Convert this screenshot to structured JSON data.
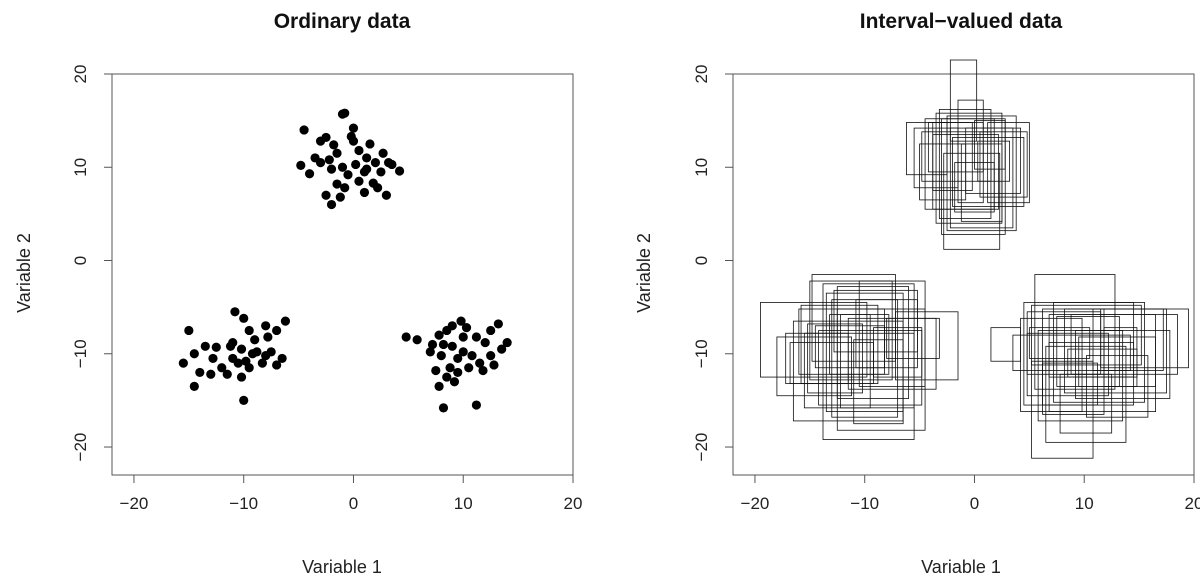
{
  "chart_data": [
    {
      "type": "scatter",
      "title": "Ordinary data",
      "xlabel": "Variable 1",
      "ylabel": "Variable 2",
      "xlim": [
        -22,
        20
      ],
      "ylim": [
        -23,
        20
      ],
      "xticks": [
        "−20",
        "−10",
        "0",
        "10",
        "20"
      ],
      "yticks": [
        "−20",
        "−10",
        "0",
        "10",
        "20"
      ],
      "grid": false,
      "legend": "none",
      "points": [
        [
          -4.5,
          14
        ],
        [
          -2.5,
          13.2
        ],
        [
          -1,
          15.7
        ],
        [
          -0.8,
          15.8
        ],
        [
          0,
          14.2
        ],
        [
          1.5,
          12.5
        ],
        [
          -3.5,
          11
        ],
        [
          -1.5,
          11.5
        ],
        [
          0.5,
          11.8
        ],
        [
          2.7,
          11.5
        ],
        [
          -4.8,
          10.2
        ],
        [
          -3,
          10.5
        ],
        [
          -2.2,
          10.8
        ],
        [
          -1,
          10
        ],
        [
          0.2,
          10.3
        ],
        [
          1.2,
          9.8
        ],
        [
          2,
          10.5
        ],
        [
          3.2,
          10.5
        ],
        [
          4.2,
          9.6
        ],
        [
          -4,
          9.3
        ],
        [
          -2,
          9.8
        ],
        [
          -0.5,
          9.2
        ],
        [
          1,
          9.5
        ],
        [
          2.5,
          9.5
        ],
        [
          3.5,
          10.3
        ],
        [
          -1.5,
          8.2
        ],
        [
          0.5,
          8.5
        ],
        [
          1.8,
          8.3
        ],
        [
          -2.5,
          7
        ],
        [
          -0.8,
          7.8
        ],
        [
          1,
          7.3
        ],
        [
          3,
          7
        ],
        [
          -1.2,
          6.8
        ],
        [
          -2,
          6
        ],
        [
          0,
          12.8
        ],
        [
          -1.8,
          12.4
        ],
        [
          -0.2,
          13.3
        ],
        [
          1.2,
          11
        ],
        [
          -3,
          12.8
        ],
        [
          2.2,
          7.8
        ],
        [
          -15,
          -7.5
        ],
        [
          -14.5,
          -10
        ],
        [
          -13.5,
          -9.2
        ],
        [
          -12.5,
          -9.3
        ],
        [
          -11,
          -8.8
        ],
        [
          -10.8,
          -5.5
        ],
        [
          -10,
          -6.2
        ],
        [
          -9.5,
          -7.5
        ],
        [
          -8,
          -7
        ],
        [
          -7,
          -7.5
        ],
        [
          -6.2,
          -6.5
        ],
        [
          -15.5,
          -11
        ],
        [
          -14,
          -12
        ],
        [
          -13,
          -12.2
        ],
        [
          -12,
          -11.5
        ],
        [
          -11,
          -10.5
        ],
        [
          -10.2,
          -9.5
        ],
        [
          -9.2,
          -10
        ],
        [
          -8.3,
          -11
        ],
        [
          -7.5,
          -9.8
        ],
        [
          -6.5,
          -10.5
        ],
        [
          -14.5,
          -13.5
        ],
        [
          -11.5,
          -12.2
        ],
        [
          -10.5,
          -11
        ],
        [
          -9.8,
          -10.8
        ],
        [
          -8.8,
          -9.8
        ],
        [
          -8,
          -10.2
        ],
        [
          -7,
          -11.2
        ],
        [
          -10.2,
          -12.5
        ],
        [
          -9.5,
          -11.5
        ],
        [
          -10,
          -15
        ],
        [
          -11.2,
          -9.2
        ],
        [
          -12.8,
          -10.5
        ],
        [
          -9,
          -8.5
        ],
        [
          -7.8,
          -8.2
        ],
        [
          4.8,
          -8.2
        ],
        [
          5.8,
          -8.5
        ],
        [
          7.2,
          -9
        ],
        [
          7.8,
          -8
        ],
        [
          8.5,
          -7.5
        ],
        [
          9,
          -9.2
        ],
        [
          9.8,
          -6.5
        ],
        [
          10.3,
          -7.2
        ],
        [
          11.2,
          -8.2
        ],
        [
          12.5,
          -7.5
        ],
        [
          13.2,
          -6.8
        ],
        [
          14,
          -8.8
        ],
        [
          8,
          -10.2
        ],
        [
          8.8,
          -11.5
        ],
        [
          9.5,
          -10.5
        ],
        [
          10,
          -9.8
        ],
        [
          10.8,
          -10.2
        ],
        [
          11.5,
          -11
        ],
        [
          12.5,
          -10.2
        ],
        [
          13.5,
          -9.5
        ],
        [
          7.5,
          -11.8
        ],
        [
          8.5,
          -12.5
        ],
        [
          9.5,
          -12
        ],
        [
          10.5,
          -11.5
        ],
        [
          11.8,
          -11.8
        ],
        [
          7.8,
          -13.5
        ],
        [
          8.2,
          -15.8
        ],
        [
          11.2,
          -15.5
        ],
        [
          9,
          -7
        ],
        [
          12,
          -8.8
        ],
        [
          10,
          -8.2
        ],
        [
          7,
          -9.8
        ],
        [
          12.8,
          -11.2
        ],
        [
          9.2,
          -13
        ],
        [
          8.2,
          -9
        ]
      ]
    },
    {
      "type": "scatter",
      "title": "Interval−valued data",
      "xlabel": "Variable 1",
      "ylabel": "Variable 2",
      "xlim": [
        -22,
        20
      ],
      "ylim": [
        -23,
        20
      ],
      "xticks": [
        "−20",
        "−10",
        "0",
        "10",
        "20"
      ],
      "yticks": [
        "−20",
        "−10",
        "0",
        "10",
        "20"
      ],
      "grid": false,
      "legend": "none",
      "rects": [
        [
          -2.2,
          0.2,
          12.8,
          21.5
        ],
        [
          -3.8,
          -0.2,
          7.5,
          14.8
        ],
        [
          -1.2,
          2.5,
          4.2,
          12.5
        ],
        [
          -4.5,
          1.8,
          5.5,
          15.2
        ],
        [
          0.5,
          4.8,
          6.8,
          13.8
        ],
        [
          -6.2,
          -2.5,
          9.2,
          14.8
        ],
        [
          -2.8,
          2.3,
          1.2,
          11.5
        ],
        [
          -3.2,
          1.5,
          4.5,
          16.2
        ],
        [
          -5,
          -0.8,
          6.5,
          12.5
        ],
        [
          -2.5,
          3.8,
          3.2,
          15.5
        ],
        [
          0.3,
          3.2,
          8.5,
          12.8
        ],
        [
          -4.2,
          0.8,
          9.5,
          14.8
        ],
        [
          -1.8,
          1.8,
          5.2,
          10.5
        ],
        [
          -3,
          2.8,
          2.8,
          15.2
        ],
        [
          -0.8,
          4.2,
          7.2,
          14.2
        ],
        [
          -3.8,
          2.2,
          5.5,
          13.5
        ],
        [
          1.2,
          5,
          6.2,
          14.8
        ],
        [
          -2.2,
          3.5,
          3.5,
          14.2
        ],
        [
          -1.5,
          0.8,
          6.2,
          17.2
        ],
        [
          -4.8,
          1.5,
          8.5,
          13.8
        ],
        [
          0,
          2.8,
          9.8,
          15
        ],
        [
          -3.5,
          2.5,
          4,
          15.8
        ],
        [
          -2,
          4.5,
          5.8,
          13.2
        ],
        [
          -5.5,
          -1.5,
          7.8,
          14.2
        ],
        [
          -19.5,
          -9.8,
          -12.5,
          -4.5
        ],
        [
          -16.5,
          -6.5,
          -17.2,
          -6.5
        ],
        [
          -15.5,
          -5.5,
          -15.8,
          -7.8
        ],
        [
          -13.8,
          -5.5,
          -19.2,
          -2.5
        ],
        [
          -18,
          -11.2,
          -14.5,
          -8.2
        ],
        [
          -16,
          -8.2,
          -12.2,
          -5.2
        ],
        [
          -14.8,
          -7.2,
          -10.8,
          -1.5
        ],
        [
          -12.5,
          -4.5,
          -18.2,
          -5.2
        ],
        [
          -15.2,
          -10.2,
          -14.2,
          -6.8
        ],
        [
          -13.5,
          -6.5,
          -16.2,
          -3.5
        ],
        [
          -11.5,
          -3.5,
          -13.8,
          -6.2
        ],
        [
          -16.8,
          -9.2,
          -13.2,
          -8.8
        ],
        [
          -14.2,
          -4.8,
          -15.5,
          -7.5
        ],
        [
          -10.8,
          -5.2,
          -11.5,
          -4.2
        ],
        [
          -13.2,
          -7.8,
          -12.2,
          -5.8
        ],
        [
          -17.2,
          -11.5,
          -13.2,
          -7.8
        ],
        [
          -12.5,
          -6,
          -14.8,
          -2.8
        ],
        [
          -9.2,
          -4.8,
          -12.5,
          -7.2
        ],
        [
          -15.8,
          -8.8,
          -13.2,
          -4.8
        ],
        [
          -12.2,
          -9.5,
          -15.8,
          -5.8
        ],
        [
          -11,
          -6.5,
          -17.5,
          -8.5
        ],
        [
          -14.5,
          -8.2,
          -11.5,
          -7
        ],
        [
          -10.5,
          -4.5,
          -13.5,
          -2.2
        ],
        [
          -8,
          -3.2,
          -10.5,
          -6.2
        ],
        [
          -13,
          -7,
          -16.8,
          -4.2
        ],
        [
          -7.2,
          -1.5,
          -12.8,
          -5.5
        ],
        [
          -15,
          -7.5,
          -12.8,
          -2.2
        ],
        [
          -12.8,
          -5.2,
          -9.8,
          -3.2
        ],
        [
          1.5,
          4.2,
          -10.8,
          -7.2
        ],
        [
          4.5,
          14.5,
          -15.5,
          -4.5
        ],
        [
          5.5,
          12.8,
          -13.8,
          -1.5
        ],
        [
          8.2,
          17.5,
          -14.2,
          -5.2
        ],
        [
          5.2,
          10.8,
          -21.2,
          -10.8
        ],
        [
          6.8,
          16.5,
          -16.2,
          -5.8
        ],
        [
          4.8,
          11.5,
          -12.2,
          -5.5
        ],
        [
          10.8,
          17.2,
          -11.8,
          -5.2
        ],
        [
          6.5,
          13.8,
          -19.5,
          -9.2
        ],
        [
          3.5,
          14.2,
          -11.8,
          -8
        ],
        [
          7.2,
          15.5,
          -15.2,
          -4.5
        ],
        [
          8.8,
          18.5,
          -12.2,
          -5.8
        ],
        [
          5.8,
          13.5,
          -17.2,
          -7.5
        ],
        [
          9.5,
          16.5,
          -13.5,
          -8.2
        ],
        [
          6.2,
          11.8,
          -16.5,
          -5.2
        ],
        [
          5,
          10.5,
          -10.5,
          -7.2
        ],
        [
          11.5,
          19.5,
          -11.5,
          -5.2
        ],
        [
          4.2,
          9.8,
          -16.2,
          -6.2
        ],
        [
          7.8,
          12.5,
          -18.5,
          -12.2
        ],
        [
          9.2,
          17.8,
          -14.8,
          -7.5
        ],
        [
          6.8,
          14.5,
          -12.5,
          -8.8
        ],
        [
          5.2,
          15.2,
          -11.2,
          -4.8
        ],
        [
          10.2,
          15.8,
          -16.8,
          -10.2
        ],
        [
          7.5,
          13.2,
          -13.5,
          -6
        ],
        [
          4.8,
          12.2,
          -14.5,
          -7.8
        ],
        [
          8.5,
          14.8,
          -12.5,
          -9.5
        ],
        [
          6.2,
          11.2,
          -15.5,
          -11
        ],
        [
          11.8,
          14.8,
          -13.5,
          -7.2
        ]
      ]
    }
  ]
}
